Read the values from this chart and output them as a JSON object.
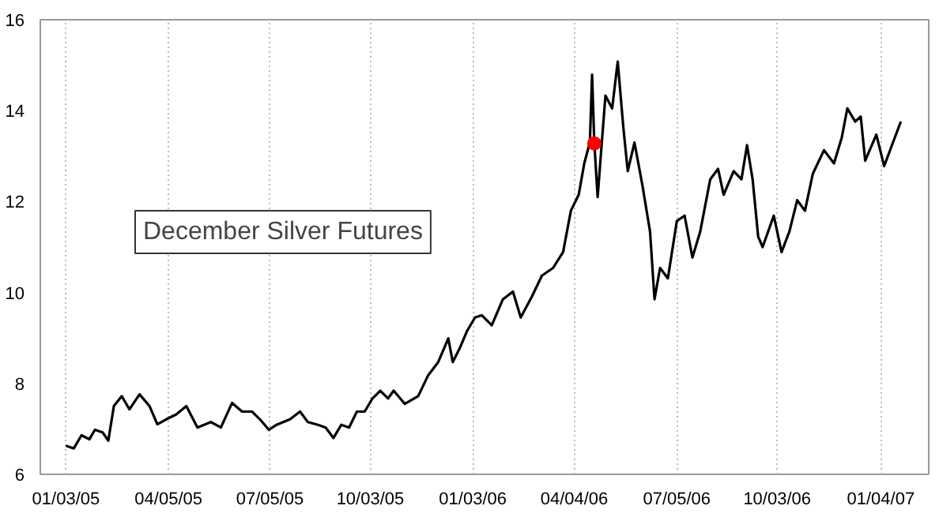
{
  "chart_data": {
    "type": "line",
    "annotations": [
      "December Silver Futures"
    ],
    "xlim": [
      "2004-12-11",
      "2007-02-16"
    ],
    "ylim": [
      6,
      16
    ],
    "xticks": [
      {
        "value": "2005-01-03",
        "label": "01/03/05"
      },
      {
        "value": "2005-04-05",
        "label": "04/05/05"
      },
      {
        "value": "2005-07-05",
        "label": "07/05/05"
      },
      {
        "value": "2005-10-03",
        "label": "10/03/05"
      },
      {
        "value": "2006-01-03",
        "label": "01/03/06"
      },
      {
        "value": "2006-04-04",
        "label": "04/04/06"
      },
      {
        "value": "2006-07-05",
        "label": "07/05/06"
      },
      {
        "value": "2006-10-03",
        "label": "10/03/06"
      },
      {
        "value": "2007-01-04",
        "label": "01/04/07"
      }
    ],
    "yticks": [
      6,
      8,
      10,
      12,
      14,
      16
    ],
    "grid": "x",
    "series": [
      {
        "color": "#000000",
        "x": [
          "2005-01-03",
          "2005-01-10",
          "2005-01-17",
          "2005-01-24",
          "2005-01-29",
          "2005-02-05",
          "2005-02-10",
          "2005-02-15",
          "2005-02-22",
          "2005-03-01",
          "2005-03-10",
          "2005-03-19",
          "2005-03-26",
          "2005-04-03",
          "2005-04-12",
          "2005-04-21",
          "2005-05-01",
          "2005-05-13",
          "2005-05-22",
          "2005-06-01",
          "2005-06-10",
          "2005-06-19",
          "2005-06-26",
          "2005-07-04",
          "2005-07-11",
          "2005-07-23",
          "2005-08-01",
          "2005-08-08",
          "2005-08-17",
          "2005-08-24",
          "2005-08-31",
          "2005-09-07",
          "2005-09-14",
          "2005-09-21",
          "2005-09-28",
          "2005-10-05",
          "2005-10-12",
          "2005-10-19",
          "2005-10-24",
          "2005-11-03",
          "2005-11-15",
          "2005-11-24",
          "2005-12-03",
          "2005-12-12",
          "2005-12-16",
          "2005-12-22",
          "2005-12-29",
          "2006-01-05",
          "2006-01-11",
          "2006-01-20",
          "2006-01-30",
          "2006-02-08",
          "2006-02-15",
          "2006-02-25",
          "2006-03-06",
          "2006-03-16",
          "2006-03-25",
          "2006-04-01",
          "2006-04-08",
          "2006-04-13",
          "2006-04-18",
          "2006-04-20",
          "2006-04-22",
          "2006-04-25",
          "2006-04-28",
          "2006-05-02",
          "2006-05-08",
          "2006-05-13",
          "2006-05-18",
          "2006-05-22",
          "2006-05-28",
          "2006-06-04",
          "2006-06-11",
          "2006-06-15",
          "2006-06-20",
          "2006-06-27",
          "2006-07-05",
          "2006-07-12",
          "2006-07-19",
          "2006-07-26",
          "2006-08-04",
          "2006-08-11",
          "2006-08-16",
          "2006-08-25",
          "2006-09-01",
          "2006-09-06",
          "2006-09-11",
          "2006-09-16",
          "2006-09-20",
          "2006-09-30",
          "2006-10-07",
          "2006-10-14",
          "2006-10-21",
          "2006-10-28",
          "2006-11-04",
          "2006-11-14",
          "2006-11-23",
          "2006-11-30",
          "2006-12-05",
          "2006-12-12",
          "2006-12-17",
          "2006-12-21",
          "2006-12-31",
          "2007-01-07",
          "2007-01-14",
          "2007-01-22"
        ],
        "values": [
          6.63,
          6.57,
          6.86,
          6.77,
          6.98,
          6.92,
          6.74,
          7.5,
          7.72,
          7.43,
          7.76,
          7.5,
          7.1,
          7.21,
          7.32,
          7.5,
          7.03,
          7.15,
          7.03,
          7.57,
          7.38,
          7.38,
          7.21,
          6.98,
          7.09,
          7.21,
          7.38,
          7.15,
          7.09,
          7.03,
          6.8,
          7.09,
          7.03,
          7.38,
          7.38,
          7.67,
          7.84,
          7.67,
          7.84,
          7.55,
          7.72,
          8.18,
          8.47,
          8.99,
          8.47,
          8.76,
          9.16,
          9.45,
          9.5,
          9.28,
          9.85,
          10.02,
          9.45,
          9.91,
          10.37,
          10.54,
          10.89,
          11.8,
          12.15,
          12.84,
          13.3,
          14.79,
          13.28,
          12.1,
          13.07,
          14.33,
          14.05,
          15.08,
          13.64,
          12.67,
          13.3,
          12.38,
          11.34,
          9.85,
          10.54,
          10.31,
          11.57,
          11.69,
          10.77,
          11.34,
          12.49,
          12.72,
          12.15,
          12.67,
          12.49,
          13.24,
          12.49,
          11.23,
          11.0,
          11.69,
          10.89,
          11.34,
          12.03,
          11.8,
          12.61,
          13.13,
          12.84,
          13.41,
          14.05,
          13.76,
          13.87,
          12.9,
          13.47,
          12.78,
          13.24,
          13.76
        ]
      },
      {
        "type": "scatter",
        "color": "#ff0000",
        "x": [
          "2006-04-22"
        ],
        "values": [
          13.28
        ]
      }
    ]
  }
}
